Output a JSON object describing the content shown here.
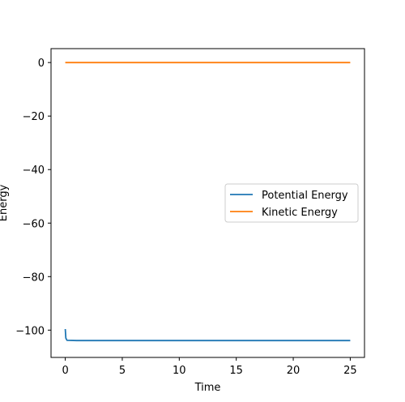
{
  "chart_data": {
    "type": "line",
    "xlabel": "Time",
    "ylabel": "Energy",
    "xlim": [
      -1.25,
      26.25
    ],
    "ylim": [
      -110.2,
      5.2
    ],
    "xticks": [
      0,
      5,
      10,
      15,
      20,
      25
    ],
    "yticks": [
      0,
      -20,
      -40,
      -60,
      -80,
      -100
    ],
    "xtick_labels": [
      "0",
      "5",
      "10",
      "15",
      "20",
      "25"
    ],
    "ytick_labels": [
      "0",
      "−20",
      "−40",
      "−60",
      "−80",
      "−100"
    ],
    "grid": false,
    "legend_position": "center-right",
    "series": [
      {
        "name": "Potential Energy",
        "color": "#1f77b4",
        "points": [
          [
            0,
            -99.6
          ],
          [
            0.05,
            -103.0
          ],
          [
            0.15,
            -103.8
          ],
          [
            1,
            -103.9
          ],
          [
            5,
            -103.9
          ],
          [
            10,
            -103.9
          ],
          [
            15,
            -103.9
          ],
          [
            20,
            -103.9
          ],
          [
            25,
            -103.9
          ]
        ]
      },
      {
        "name": "Kinetic Energy",
        "color": "#ff7f0e",
        "points": [
          [
            0,
            0
          ],
          [
            5,
            0
          ],
          [
            10,
            0
          ],
          [
            15,
            0
          ],
          [
            20,
            0
          ],
          [
            25,
            0
          ]
        ]
      }
    ]
  }
}
